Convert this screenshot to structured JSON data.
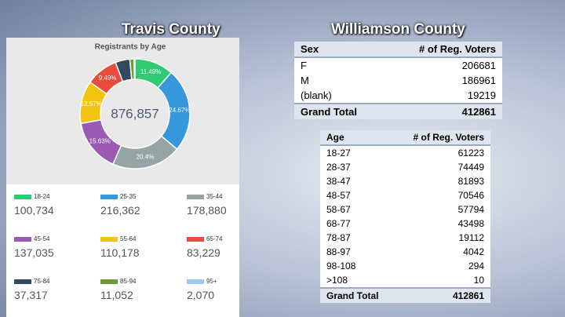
{
  "left_heading": "Travis County",
  "right_heading": "Williamson County",
  "chart_data": {
    "type": "pie",
    "title": "Registrants by Age",
    "center_label": "876,857",
    "categories": [
      "18-24",
      "25-35",
      "35-44",
      "45-54",
      "55-64",
      "65-74",
      "75-84",
      "85-94",
      "95+"
    ],
    "values": [
      11.49,
      24.67,
      20.4,
      15.63,
      12.57,
      9.49,
      4.26,
      1.26,
      0.24
    ],
    "value_labels": [
      "11.49%",
      "24.67%",
      "20.4%",
      "15.63%",
      "12.57%",
      "9.49%",
      null,
      null,
      null
    ],
    "colors": [
      "#2ecc71",
      "#3498db",
      "#95a5a6",
      "#9b59b6",
      "#f1c40f",
      "#e74c3c",
      "#34495e",
      "#6a9a3a",
      "#9fc5f0"
    ],
    "legend_counts": [
      "100,734",
      "216,362",
      "178,880",
      "137,035",
      "110,178",
      "83,229",
      "37,317",
      "11,052",
      "2,070"
    ]
  },
  "sex_table": {
    "headers": [
      "Sex",
      "# of Reg. Voters"
    ],
    "rows": [
      [
        "F",
        "206681"
      ],
      [
        "M",
        "186961"
      ],
      [
        "(blank)",
        "19219"
      ]
    ],
    "total": [
      "Grand Total",
      "412861"
    ]
  },
  "age_table": {
    "headers": [
      "Age",
      "# of Reg. Voters"
    ],
    "rows": [
      [
        "18-27",
        "61223"
      ],
      [
        "28-37",
        "74449"
      ],
      [
        "38-47",
        "81893"
      ],
      [
        "48-57",
        "70546"
      ],
      [
        "58-67",
        "57794"
      ],
      [
        "68-77",
        "43498"
      ],
      [
        "78-87",
        "19112"
      ],
      [
        "88-97",
        "4042"
      ],
      [
        "98-108",
        "294"
      ],
      [
        ">108",
        "10"
      ]
    ],
    "total": [
      "Grand Total",
      "412861"
    ]
  }
}
